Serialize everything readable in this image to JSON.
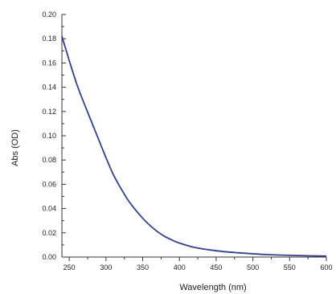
{
  "chart_data": {
    "type": "line",
    "title": "",
    "xlabel": "Wavelength (nm)",
    "ylabel": "Abs (OD)",
    "xlim": [
      240,
      600
    ],
    "ylim": [
      0.0,
      0.2
    ],
    "x_ticks": [
      "250",
      "300",
      "350",
      "400",
      "450",
      "500",
      "550",
      "600"
    ],
    "x_tick_values": [
      250,
      300,
      350,
      400,
      450,
      500,
      550,
      600
    ],
    "y_ticks": [
      "0.00",
      "0.02",
      "0.04",
      "0.06",
      "0.08",
      "0.10",
      "0.12",
      "0.14",
      "0.16",
      "0.18",
      "0.20"
    ],
    "y_tick_values": [
      0.0,
      0.02,
      0.04,
      0.06,
      0.08,
      0.1,
      0.12,
      0.14,
      0.16,
      0.18,
      0.2
    ],
    "grid": false,
    "legend": "none",
    "line_color": "#34408a",
    "series": [
      {
        "x": [
          240,
          250,
          260,
          270,
          280,
          290,
          300,
          310,
          320,
          330,
          340,
          350,
          360,
          370,
          380,
          390,
          400,
          420,
          440,
          460,
          480,
          500,
          520,
          550,
          580,
          600
        ],
        "values": [
          0.182,
          0.162,
          0.143,
          0.127,
          0.112,
          0.097,
          0.082,
          0.068,
          0.057,
          0.047,
          0.039,
          0.032,
          0.026,
          0.021,
          0.017,
          0.014,
          0.0115,
          0.008,
          0.006,
          0.0045,
          0.0035,
          0.0027,
          0.002,
          0.0014,
          0.001,
          0.0008
        ]
      }
    ]
  }
}
